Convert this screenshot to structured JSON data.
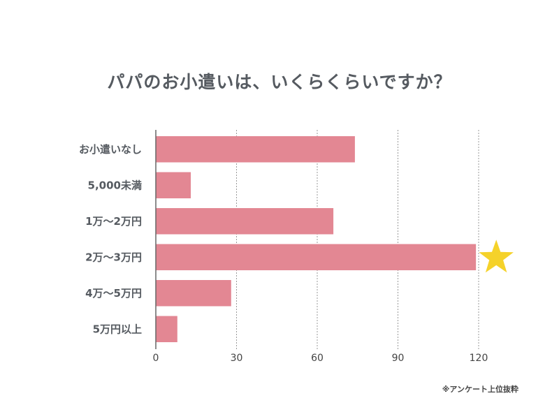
{
  "chart_data": {
    "type": "bar",
    "orientation": "horizontal",
    "title": "パパのお小遣いは、いくらくらいですか？",
    "categories": [
      "お小遣いなし",
      "5,000未満",
      "1万～2万円",
      "2万～3万円",
      "4万～5万円",
      "5万円以上"
    ],
    "values": [
      74,
      13,
      66,
      119,
      28,
      8
    ],
    "xlim": [
      0,
      130
    ],
    "xticks": [
      "0",
      "30",
      "60",
      "90",
      "120"
    ],
    "xtick_values": [
      0,
      30,
      60,
      90,
      120
    ],
    "grid": true,
    "highlight_index": 3,
    "highlight_marker": "star-icon",
    "note": "※アンケート上位抜粋",
    "colors": {
      "bar": "#e38793",
      "star": "#f5d22a",
      "grid": "#999999",
      "axis": "#666666"
    }
  }
}
